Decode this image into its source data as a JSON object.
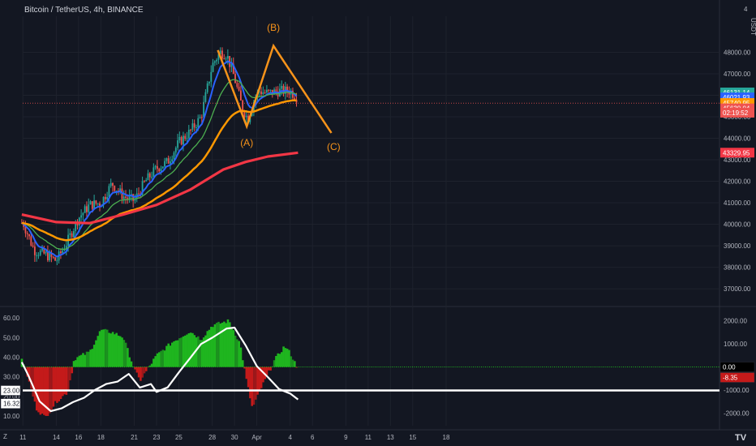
{
  "header": {
    "title": "Bitcoin / TetherUS, 4h, BINANCE",
    "currency": "USDT"
  },
  "colors": {
    "background": "#131722",
    "candle_up": "#26a69a",
    "candle_down": "#ef5350",
    "ema_fast": "#2962ff",
    "ema_mid": "#4caf50",
    "ema_slow": "#ff9800",
    "ema_long": "#f23645",
    "wave": "#f7931a",
    "osc_up": "#1fb51f",
    "osc_down": "#c41a1a"
  },
  "chart_data": {
    "type": "candlestick",
    "price_axis": {
      "ylim": [
        36400,
        49300
      ],
      "ticks": [
        "48000.00",
        "47000.00",
        "46000.00",
        "45000.00",
        "44000.00",
        "43000.00",
        "42000.00",
        "41000.00",
        "40000.00",
        "39000.00",
        "38000.00",
        "37000.00"
      ],
      "top_tick": "4"
    },
    "x_axis": {
      "ticks": [
        "11",
        "14",
        "16",
        "18",
        "21",
        "23",
        "25",
        "28",
        "30",
        "Apr",
        "4",
        "6",
        "9",
        "11",
        "13",
        "15",
        "18"
      ]
    },
    "price_tags": [
      {
        "label": "46131.14",
        "value": 46131,
        "color": "#26a69a"
      },
      {
        "label": "46021.93",
        "value": 45900,
        "color": "#2962ff"
      },
      {
        "label": "45740.95",
        "value": 45640,
        "color": "#ff9800"
      },
      {
        "label": "45630.04",
        "value": 45390,
        "color": "#ef5350"
      },
      {
        "label": "02:19:52",
        "value": 45190,
        "color": "#ef5350"
      },
      {
        "label": "43329.95",
        "value": 43330,
        "color": "#f23645"
      }
    ],
    "last_price": 45630.04,
    "waves": [
      {
        "label": "(A)",
        "date": "Mar 30",
        "price": 44500
      },
      {
        "label": "(B)",
        "date": "Apr 2",
        "price": 48300
      },
      {
        "label": "(C)",
        "date": "Apr 7",
        "price": 44100
      }
    ],
    "oscillator": {
      "left_ticks": [
        "60.00",
        "50.00",
        "40.00",
        "30.00",
        "20.00",
        "10.00"
      ],
      "right_ticks": [
        "2000.00",
        "1000.00",
        "-1000.00",
        "-2000.00"
      ],
      "level_label": "23.00",
      "level_value": 23,
      "current_value": "16.32",
      "zero_label": "0.00",
      "hist_label": "-8.35"
    },
    "logo": "TV"
  }
}
